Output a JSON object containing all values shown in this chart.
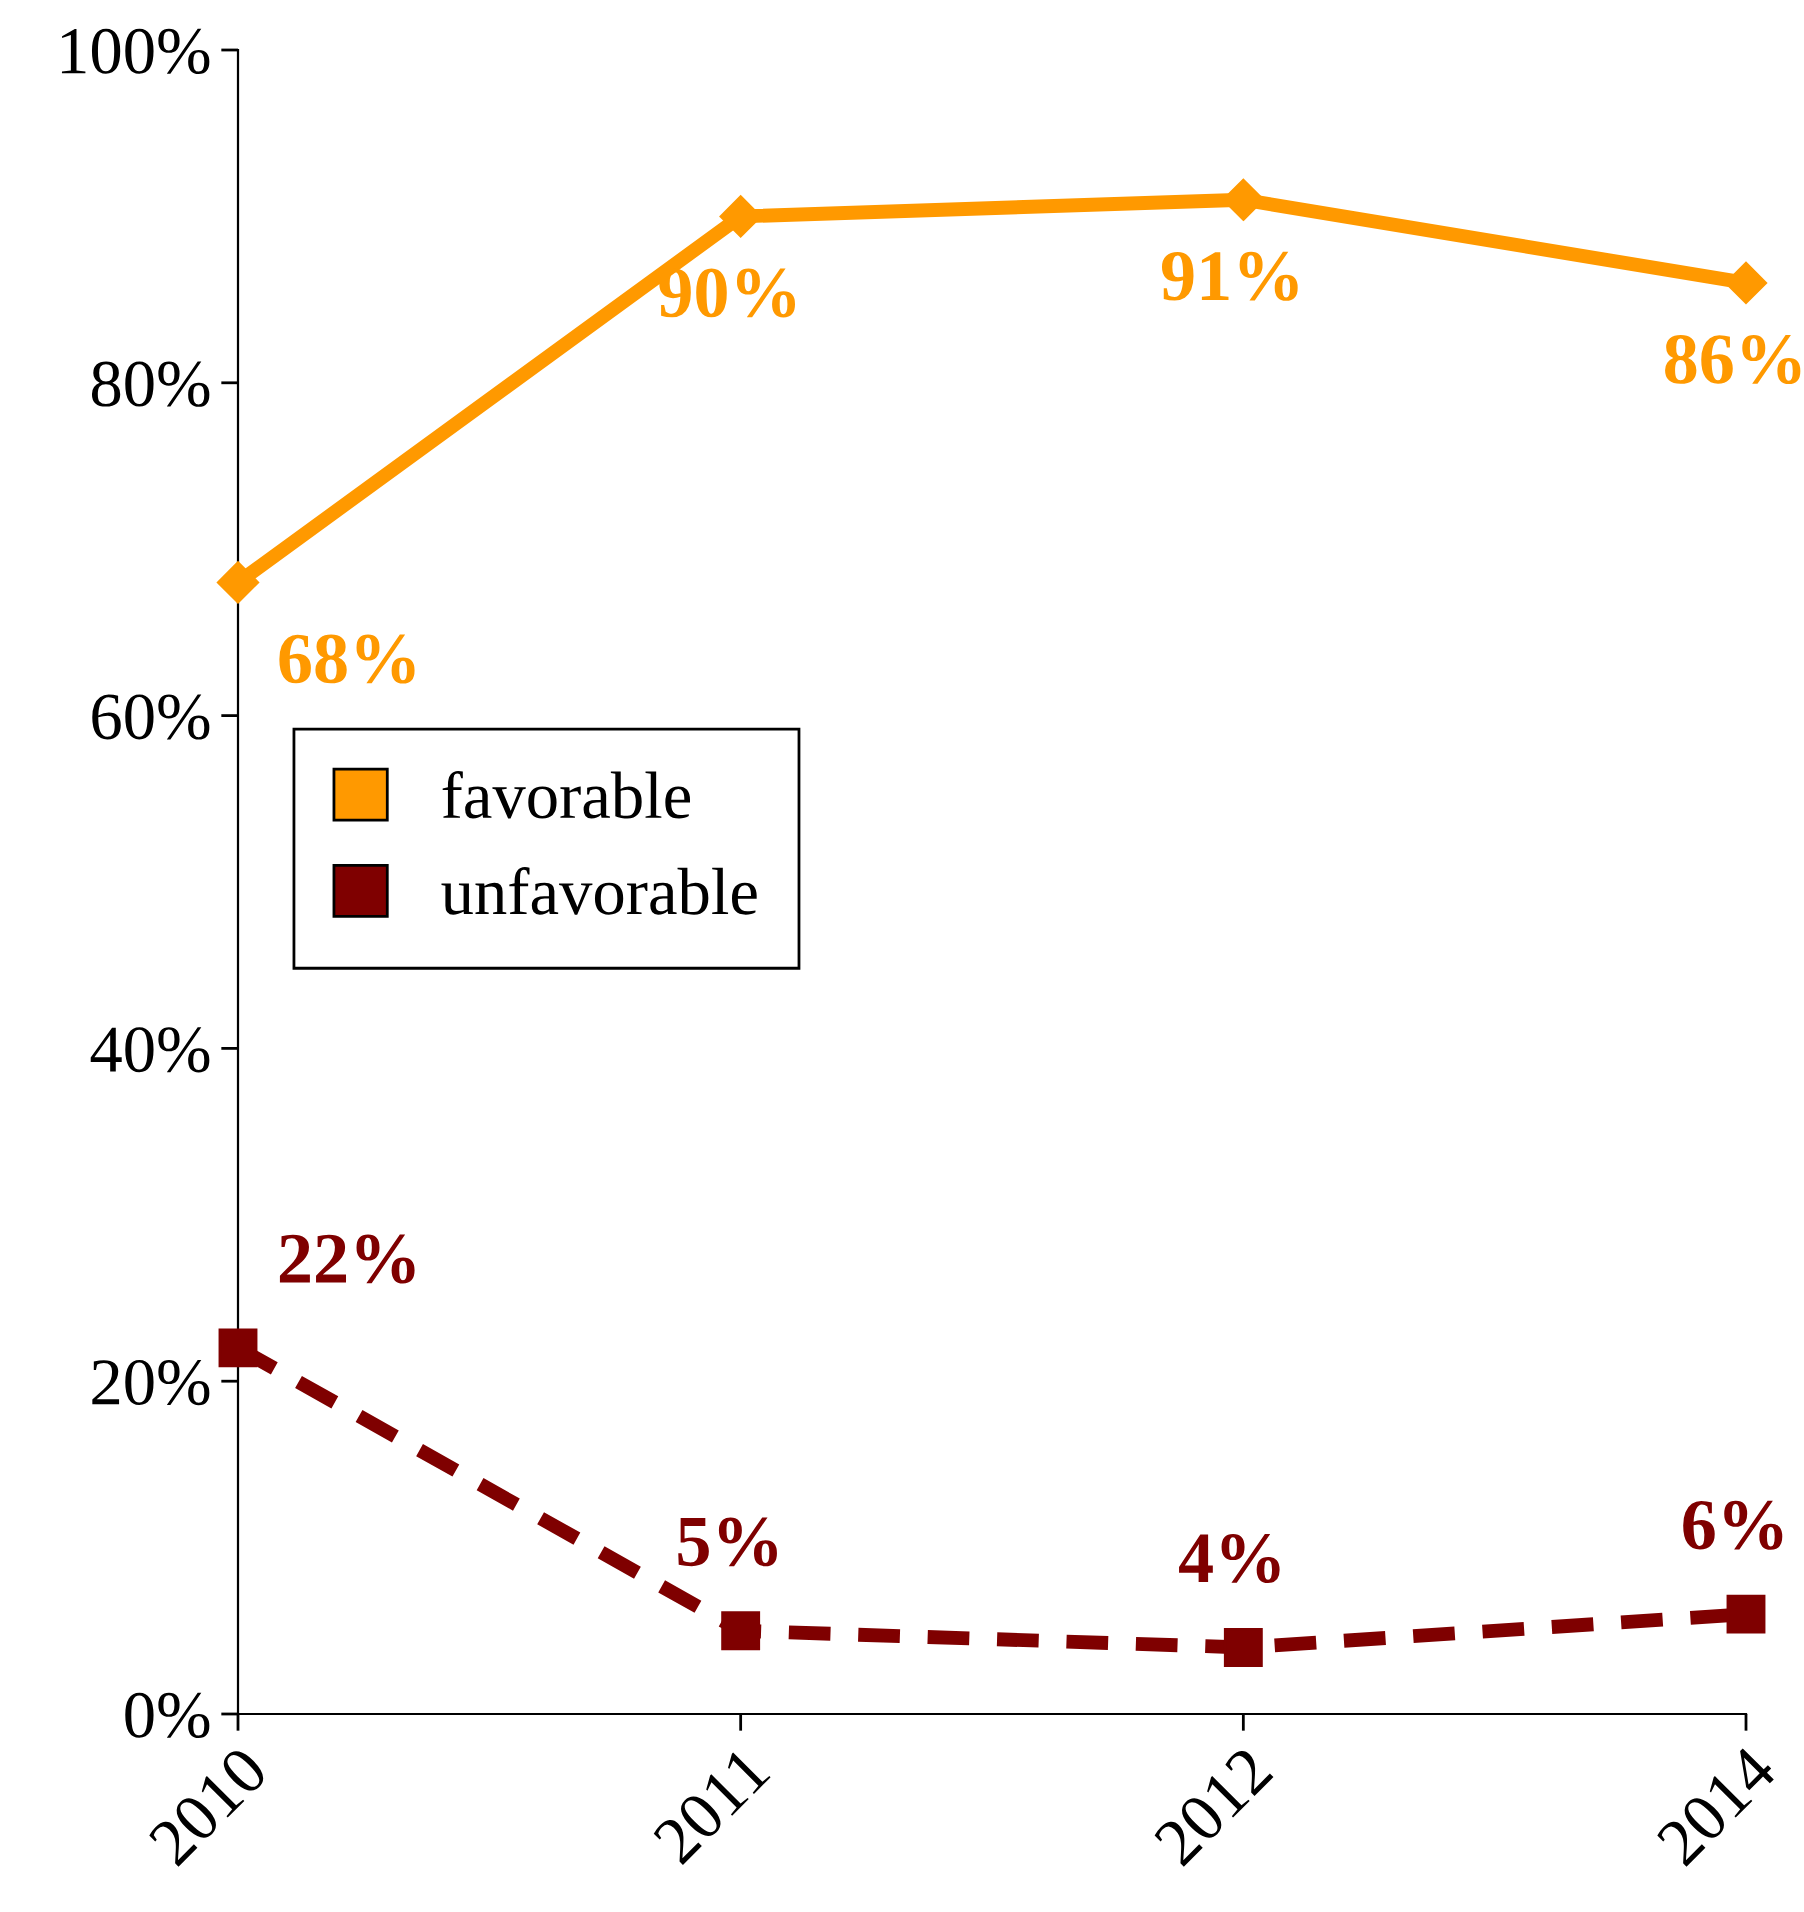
{
  "chart_data": {
    "type": "line",
    "categories": [
      "2010",
      "2011",
      "2012",
      "2014"
    ],
    "series": [
      {
        "name": "favorable",
        "color": "#ff9900",
        "values": [
          68,
          90,
          91,
          86
        ],
        "value_labels": [
          "68%",
          "90%",
          "91%",
          "86%"
        ],
        "marker": "diamond",
        "line_style": "solid"
      },
      {
        "name": "unfavorable",
        "color": "#7f0000",
        "values": [
          22,
          5,
          4,
          6
        ],
        "value_labels": [
          "22%",
          "5%",
          "4%",
          "6%"
        ],
        "marker": "square",
        "line_style": "dashed"
      }
    ],
    "ylim": [
      0,
      100
    ],
    "yticks": [
      {
        "value": 0,
        "label": "0%"
      },
      {
        "value": 20,
        "label": "20%"
      },
      {
        "value": 40,
        "label": "40%"
      },
      {
        "value": 60,
        "label": "60%"
      },
      {
        "value": 80,
        "label": "80%"
      },
      {
        "value": 100,
        "label": "100%"
      }
    ],
    "grid": false,
    "legend": "left"
  }
}
